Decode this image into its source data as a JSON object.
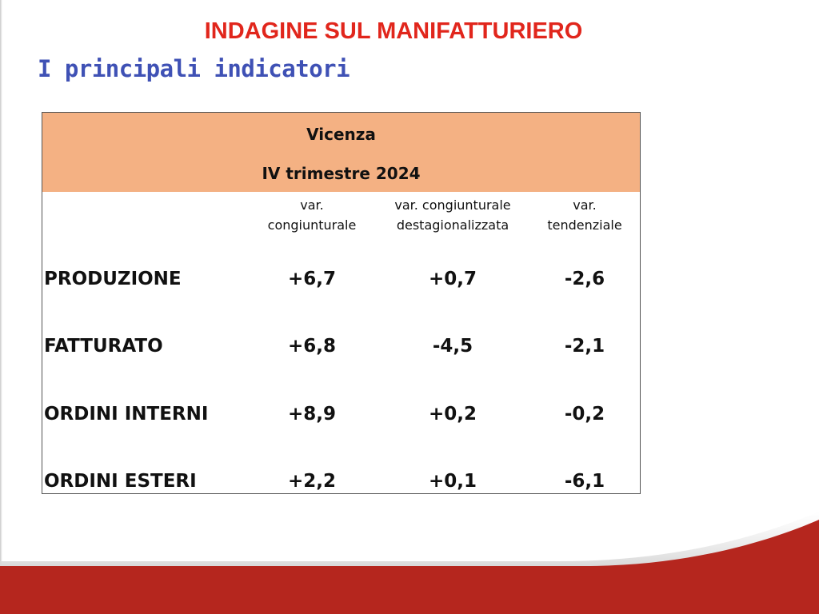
{
  "slide": {
    "title": "INDAGINE SUL MANIFATTURIERO",
    "subtitle": "I principali indicatori"
  },
  "table": {
    "region": "Vicenza",
    "period": "IV trimestre 2024",
    "columns": [
      {
        "line1": "var.",
        "line2": "congiunturale"
      },
      {
        "line1": "var. congiunturale",
        "line2": "destagionalizzata"
      },
      {
        "line1": "var.",
        "line2": "tendenziale"
      }
    ],
    "rows": [
      {
        "label": "PRODUZIONE",
        "values": [
          "+6,7",
          "+0,7",
          "-2,6"
        ]
      },
      {
        "label": "FATTURATO",
        "values": [
          "+6,8",
          "-4,5",
          "-2,1"
        ]
      },
      {
        "label": "ORDINI INTERNI",
        "values": [
          "+8,9",
          "+0,2",
          "-0,2"
        ]
      },
      {
        "label": "ORDINI ESTERI",
        "values": [
          "+2,2",
          "+0,1",
          "-6,1"
        ]
      }
    ],
    "header_color": "#f4b183"
  },
  "colors": {
    "title": "#e1261c",
    "subtitle": "#3f51b5",
    "footer_band": "#b5261e"
  }
}
